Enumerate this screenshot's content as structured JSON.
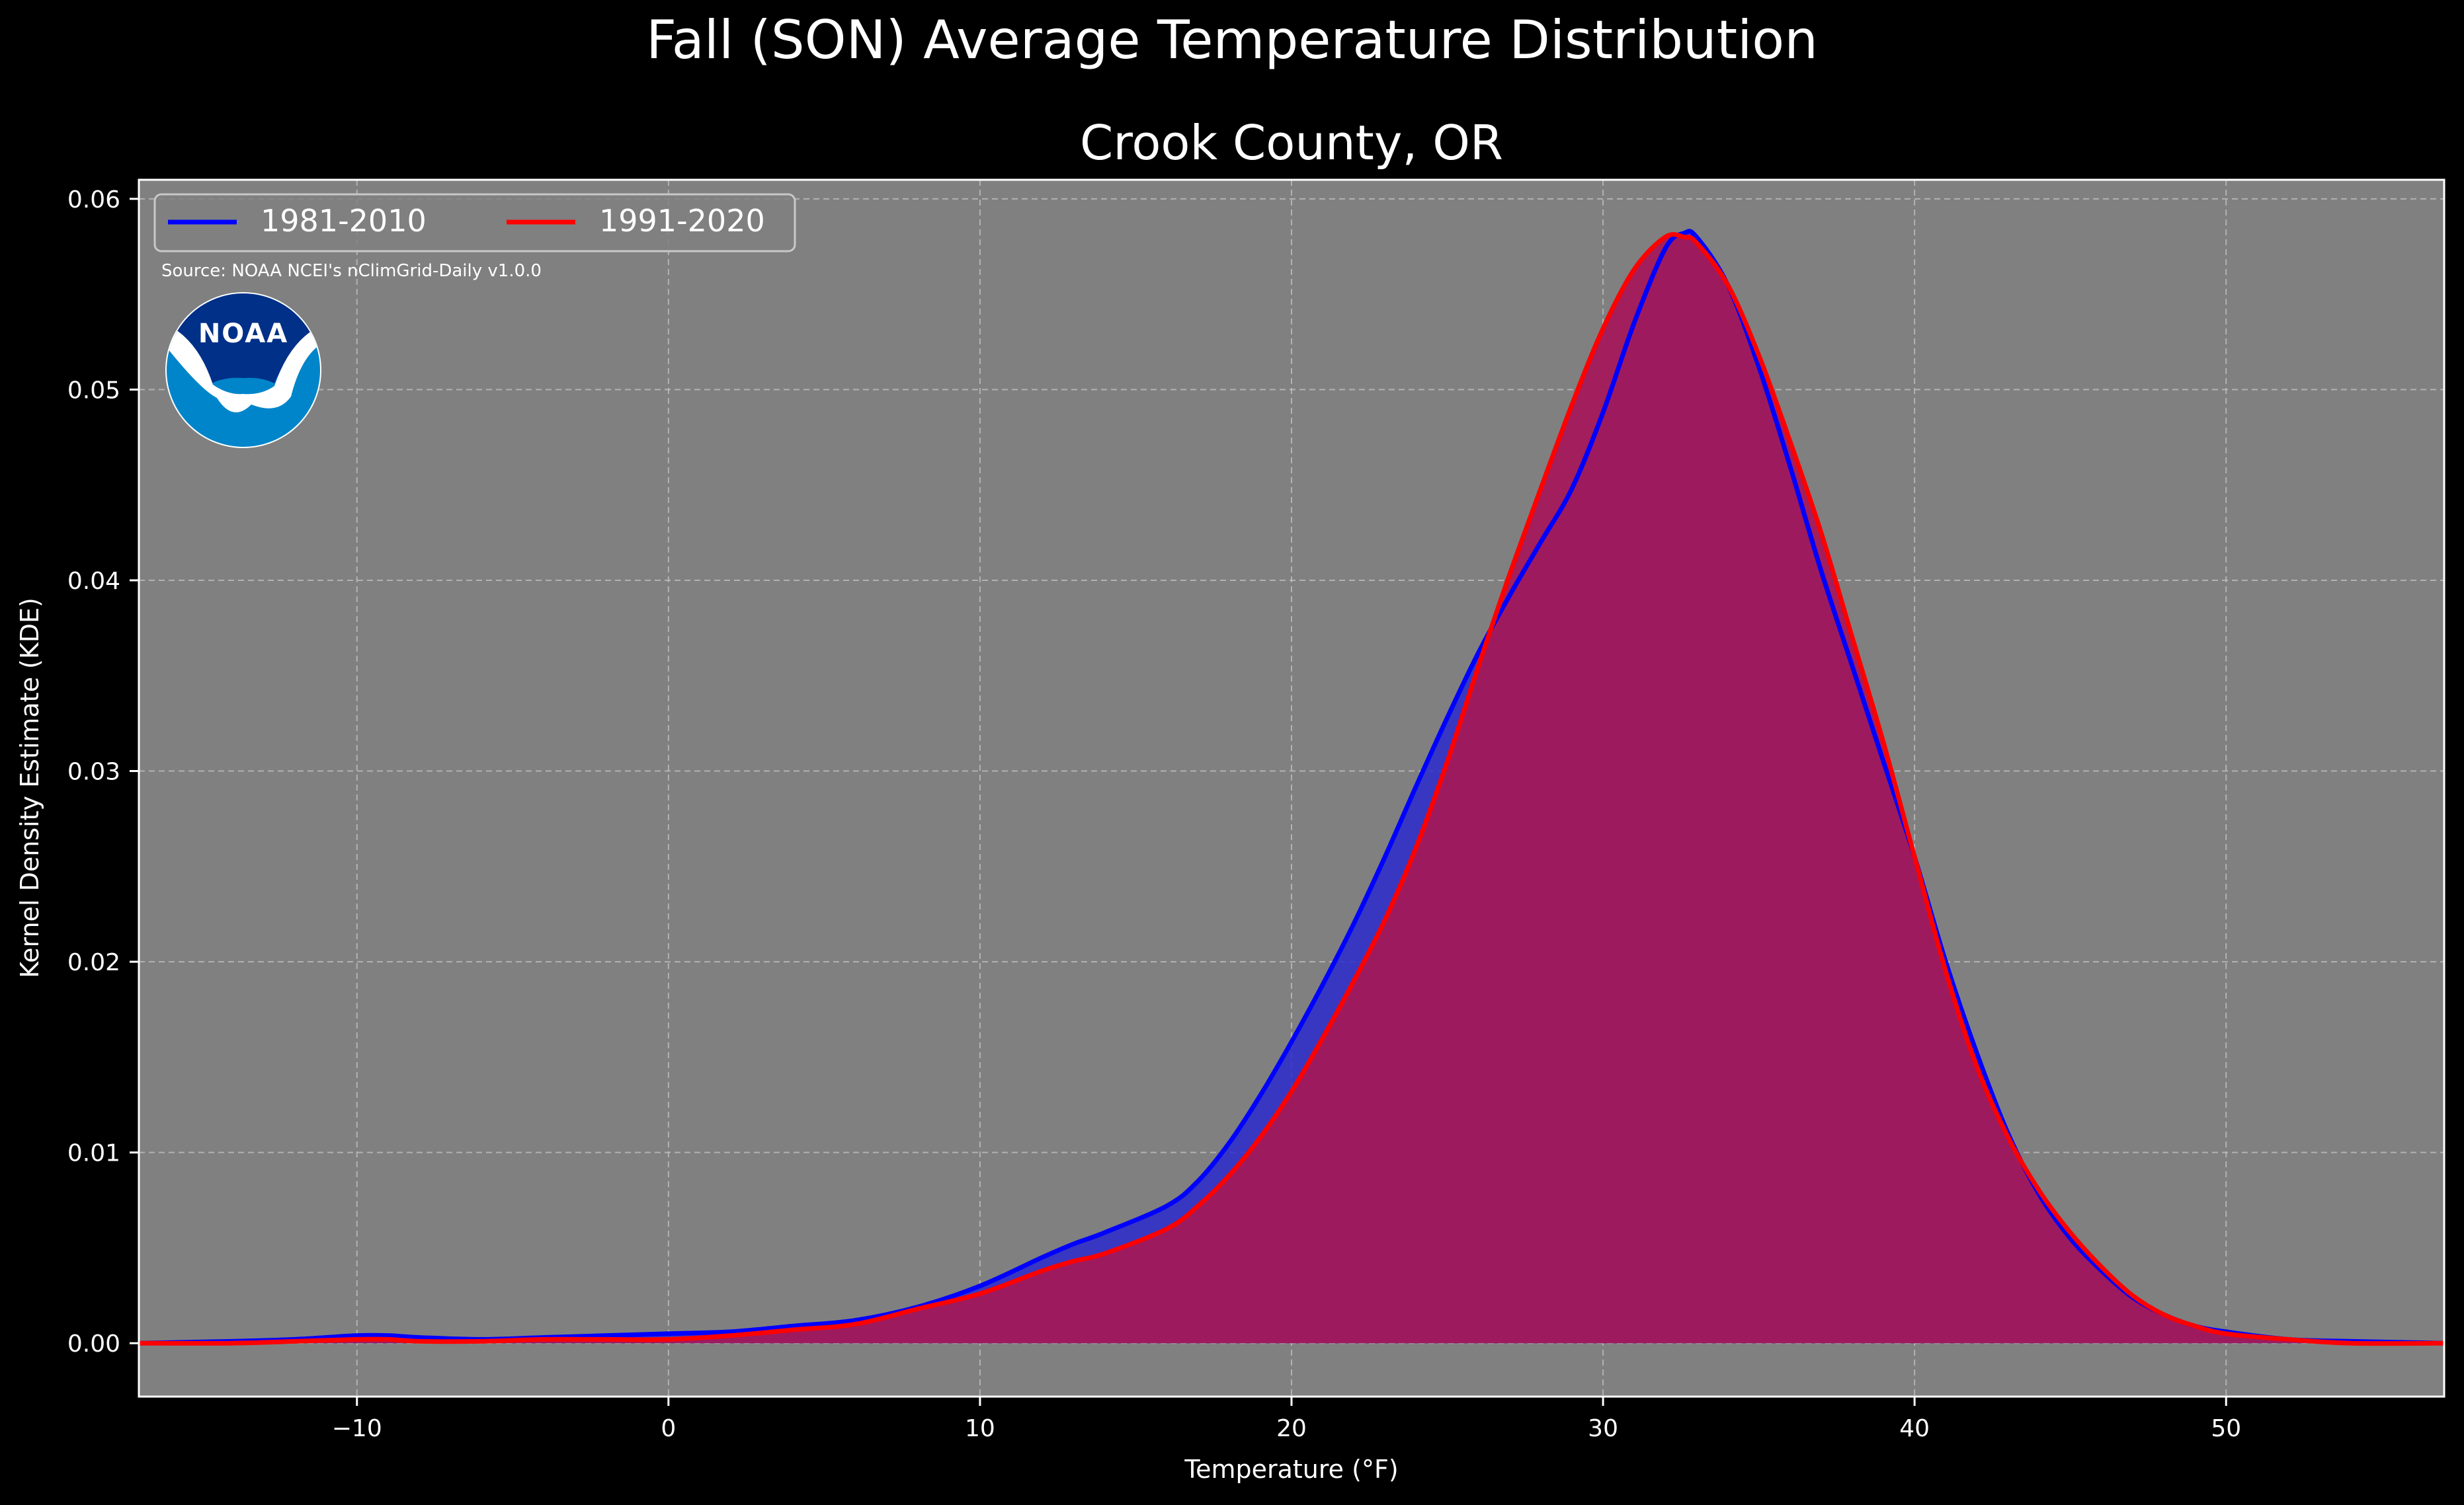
{
  "figure": {
    "title": "Fall (SON) Average Temperature Distribution",
    "subtitle": "Crook County, OR",
    "source_note": "Source: NOAA NCEI's nClimGrid-Daily v1.0.0",
    "logo_text": "NOAA"
  },
  "colors": {
    "background": "#000000",
    "plot_bg": "#808080",
    "series_1981": "#0000ff",
    "series_1991": "#ff0000",
    "fill_1991": "#a3185a",
    "logo_dark": "#003087",
    "logo_light": "#0085ca"
  },
  "chart_data": {
    "type": "area",
    "xlabel": "Temperature ($^\\circ$F)",
    "xlabel_display": "Temperature (°F)",
    "ylabel": "Kernel Density Estimate (KDE)",
    "xlim": [
      -17,
      57
    ],
    "ylim": [
      -0.0028,
      0.061
    ],
    "xticks": [
      -10,
      0,
      10,
      20,
      30,
      40,
      50
    ],
    "xtick_labels": [
      "−10",
      "0",
      "10",
      "20",
      "30",
      "40",
      "50"
    ],
    "yticks": [
      0.0,
      0.01,
      0.02,
      0.03,
      0.04,
      0.05,
      0.06
    ],
    "ytick_labels": [
      "0.00",
      "0.01",
      "0.02",
      "0.03",
      "0.04",
      "0.05",
      "0.06"
    ],
    "grid": true,
    "legend_position": "top-left",
    "series": [
      {
        "name": "1981-2010",
        "x": [
          -17,
          -14,
          -12,
          -10,
          -9,
          -8,
          -6,
          -4,
          -2,
          0,
          2,
          4,
          6,
          8,
          10,
          12,
          13,
          14,
          16,
          17,
          18,
          19,
          20,
          21,
          22,
          23,
          24,
          25,
          26,
          27,
          28,
          29,
          30,
          31,
          32,
          32.6,
          33,
          34,
          35,
          36,
          37,
          38,
          39,
          40,
          41,
          42,
          43,
          44,
          45,
          46,
          47,
          48,
          49,
          50,
          52,
          54,
          57
        ],
        "y": [
          0.0,
          0.0001,
          0.0002,
          0.0004,
          0.0004,
          0.0003,
          0.0002,
          0.0003,
          0.0004,
          0.0005,
          0.0006,
          0.0009,
          0.0012,
          0.0019,
          0.003,
          0.0045,
          0.0052,
          0.0058,
          0.0072,
          0.0085,
          0.0105,
          0.013,
          0.0158,
          0.0188,
          0.022,
          0.0255,
          0.0292,
          0.0328,
          0.0362,
          0.0392,
          0.042,
          0.0448,
          0.0488,
          0.0535,
          0.0574,
          0.0582,
          0.058,
          0.0555,
          0.0512,
          0.046,
          0.0405,
          0.0355,
          0.0305,
          0.0255,
          0.02,
          0.0152,
          0.011,
          0.0078,
          0.0055,
          0.0038,
          0.0024,
          0.0015,
          0.0009,
          0.0006,
          0.0002,
          0.0001,
          0.0
        ]
      },
      {
        "name": "1991-2020",
        "x": [
          -17,
          -14,
          -12,
          -10,
          -9,
          -8,
          -6,
          -4,
          -2,
          0,
          2,
          4,
          6,
          8,
          10,
          12,
          13,
          14,
          16,
          17,
          18,
          19,
          20,
          21,
          22,
          23,
          24,
          25,
          26,
          27,
          28,
          29,
          30,
          31,
          32,
          32.6,
          33,
          34,
          35,
          36,
          37,
          38,
          39,
          40,
          41,
          42,
          43,
          44,
          45,
          46,
          47,
          48,
          49,
          50,
          52,
          54,
          57
        ],
        "y": [
          0.0,
          0.0,
          0.0001,
          0.0002,
          0.0002,
          0.0001,
          0.0001,
          0.0002,
          0.0002,
          0.0002,
          0.0004,
          0.0007,
          0.001,
          0.0018,
          0.0026,
          0.0038,
          0.0043,
          0.0047,
          0.006,
          0.0072,
          0.0088,
          0.0108,
          0.0132,
          0.016,
          0.019,
          0.0222,
          0.026,
          0.0305,
          0.0355,
          0.0403,
          0.0448,
          0.0492,
          0.0532,
          0.0563,
          0.058,
          0.058,
          0.0577,
          0.0555,
          0.0518,
          0.0473,
          0.0425,
          0.037,
          0.0315,
          0.0255,
          0.0195,
          0.0145,
          0.0108,
          0.008,
          0.0058,
          0.004,
          0.0025,
          0.0015,
          0.0009,
          0.0005,
          0.0002,
          0.0,
          0.0
        ]
      }
    ]
  }
}
